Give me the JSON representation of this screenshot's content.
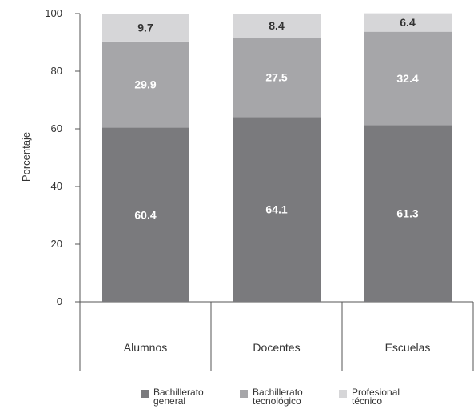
{
  "chart_data": {
    "type": "bar",
    "stacked": true,
    "categories": [
      "Alumnos",
      "Docentes",
      "Escuelas"
    ],
    "series": [
      {
        "name": "Bachillerato general",
        "values": [
          60.4,
          64.1,
          61.3
        ],
        "color": "#7a7a7d",
        "label_color": "#ffffff"
      },
      {
        "name": "Bachillerato tecnológico",
        "values": [
          29.9,
          27.5,
          32.4
        ],
        "color": "#a6a6a9",
        "label_color": "#ffffff"
      },
      {
        "name": "Profesional técnico",
        "values": [
          9.7,
          8.4,
          6.4
        ],
        "color": "#d6d6d8",
        "label_color": "#333333"
      }
    ],
    "ylabel": "Porcentaje",
    "ylim": [
      0,
      100
    ],
    "yticks": [
      0,
      20,
      40,
      60,
      80,
      100
    ],
    "grid": false,
    "legend_position": "bottom"
  },
  "legend": {
    "items": [
      {
        "line1": "Bachillerato",
        "line2": "general"
      },
      {
        "line1": "Bachillerato",
        "line2": "tecnológico"
      },
      {
        "line1": "Profesional",
        "line2": "técnico"
      }
    ]
  }
}
